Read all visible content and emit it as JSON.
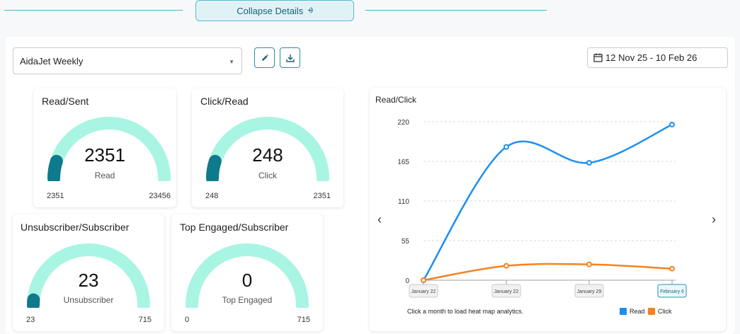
{
  "collapse": {
    "label": "Collapse Details",
    "chevron": "«"
  },
  "newsletter_select": {
    "value": "AidaJet Weekly"
  },
  "date_range": {
    "label": "12 Nov 25 - 10 Feb 26"
  },
  "gauges": [
    {
      "title": "Read/Sent",
      "value": "2351",
      "sub": "Read",
      "min": "2351",
      "max": "23456",
      "fraction": 0.1
    },
    {
      "title": "Click/Read",
      "value": "248",
      "sub": "Click",
      "min": "248",
      "max": "2351",
      "fraction": 0.1
    },
    {
      "title": "Unsubscriber/Subscriber",
      "value": "23",
      "sub": "Unsubscriber",
      "min": "23",
      "max": "715",
      "fraction": 0.03
    },
    {
      "title": "Top Engaged/Subscriber",
      "value": "0",
      "sub": "Top Engaged",
      "min": "0",
      "max": "715",
      "fraction": 0
    }
  ],
  "colors": {
    "gauge_track": "#a8f5e3",
    "gauge_fill": "#0e7a8c",
    "read": "#1e8ff0",
    "click": "#f5821f",
    "accent": "#2a8fa6"
  },
  "chart_data": {
    "type": "line",
    "title": "Read/Click",
    "categories": [
      "",
      "January 22",
      "January 29",
      "February 6"
    ],
    "tick_labels": [
      "January 22",
      "January 22",
      "January 29",
      "February 6"
    ],
    "series": [
      {
        "name": "Read",
        "values": [
          0,
          185,
          163,
          216
        ]
      },
      {
        "name": "Click",
        "values": [
          0,
          20,
          22,
          16
        ]
      }
    ],
    "ylim": [
      0,
      220
    ],
    "yticks": [
      "0",
      "55",
      "110",
      "165",
      "220"
    ],
    "grid": true,
    "legend": "bottom-right",
    "hint": "Click a month to load heat map analytics."
  },
  "icons": {
    "edit": "pencil-icon",
    "download": "download-icon",
    "calendar": "calendar-icon",
    "prev": "chevron-left-icon",
    "next": "chevron-right-icon"
  }
}
